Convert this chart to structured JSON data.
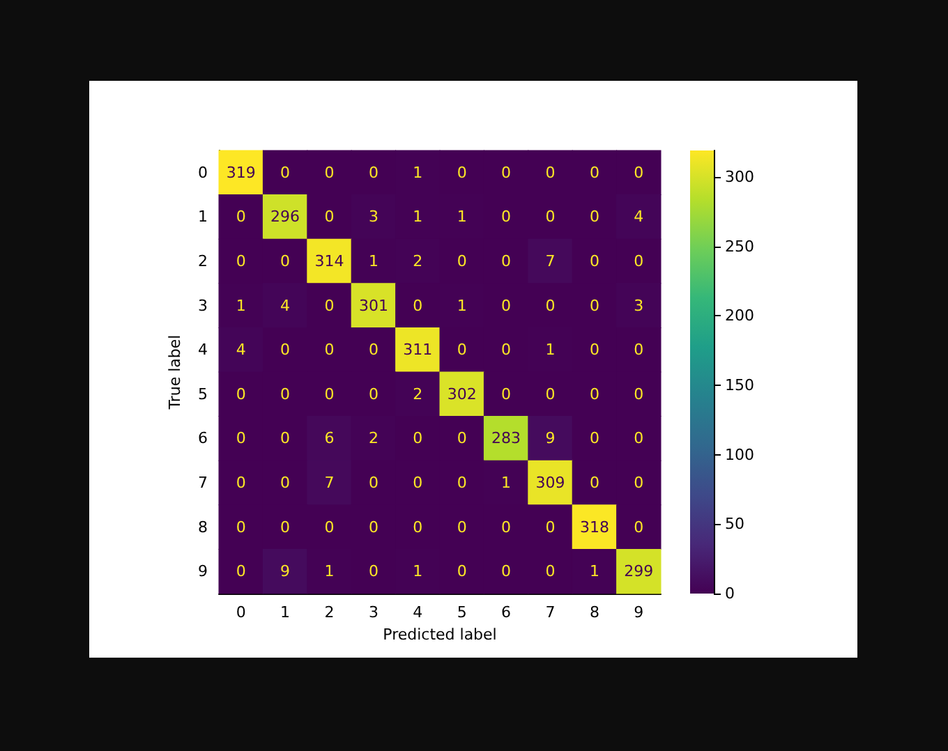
{
  "chart_data": {
    "type": "heatmap",
    "xlabel": "Predicted label",
    "ylabel": "True label",
    "categories": [
      "0",
      "1",
      "2",
      "3",
      "4",
      "5",
      "6",
      "7",
      "8",
      "9"
    ],
    "y_categories": [
      "0",
      "1",
      "2",
      "3",
      "4",
      "5",
      "6",
      "7",
      "8",
      "9"
    ],
    "cells": [
      [
        319,
        0,
        0,
        0,
        1,
        0,
        0,
        0,
        0,
        0
      ],
      [
        0,
        296,
        0,
        3,
        1,
        1,
        0,
        0,
        0,
        4
      ],
      [
        0,
        0,
        314,
        1,
        2,
        0,
        0,
        7,
        0,
        0
      ],
      [
        1,
        4,
        0,
        301,
        0,
        1,
        0,
        0,
        0,
        3
      ],
      [
        4,
        0,
        0,
        0,
        311,
        0,
        0,
        1,
        0,
        0
      ],
      [
        0,
        0,
        0,
        0,
        2,
        302,
        0,
        0,
        0,
        0
      ],
      [
        0,
        0,
        6,
        2,
        0,
        0,
        283,
        9,
        0,
        0
      ],
      [
        0,
        0,
        7,
        0,
        0,
        0,
        1,
        309,
        0,
        0
      ],
      [
        0,
        0,
        0,
        0,
        0,
        0,
        0,
        0,
        318,
        0
      ],
      [
        0,
        9,
        1,
        0,
        1,
        0,
        0,
        0,
        1,
        299
      ]
    ],
    "clim": [
      0,
      319
    ],
    "cticks": [
      0,
      50,
      100,
      150,
      200,
      250,
      300
    ],
    "data_labels": true
  }
}
